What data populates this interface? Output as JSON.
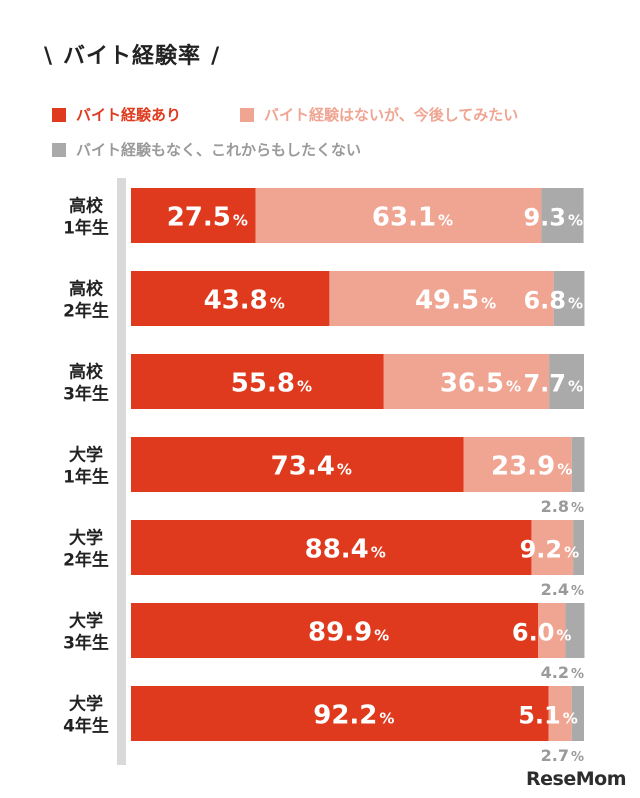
{
  "title": "バイト経験率",
  "title_slash_left": "\\",
  "title_slash_right": "/",
  "legend": [
    {
      "label": "バイト経験あり",
      "color": "#e03a1e",
      "text_color": "#e03a1e"
    },
    {
      "label": "バイト経験はないが、今後してみたい",
      "color": "#f0a593",
      "text_color": "#f0a593"
    },
    {
      "label": "バイト経験もなく、これからもしたくない",
      "color": "#aaaaaa",
      "text_color": "#9a9a9a"
    }
  ],
  "logo": "ReseMom",
  "chart_data": {
    "type": "bar",
    "stacked": true,
    "orientation": "horizontal",
    "unit": "%",
    "categories": [
      [
        "高校",
        "1年生"
      ],
      [
        "高校",
        "2年生"
      ],
      [
        "高校",
        "3年生"
      ],
      [
        "大学",
        "1年生"
      ],
      [
        "大学",
        "2年生"
      ],
      [
        "大学",
        "3年生"
      ],
      [
        "大学",
        "4年生"
      ]
    ],
    "series": [
      {
        "name": "バイト経験あり",
        "color": "#e03a1e",
        "values": [
          27.5,
          43.8,
          55.8,
          73.4,
          88.4,
          89.9,
          92.2
        ]
      },
      {
        "name": "バイト経験はないが、今後してみたい",
        "color": "#f0a593",
        "values": [
          63.1,
          49.5,
          36.5,
          23.9,
          9.2,
          6.0,
          5.1
        ]
      },
      {
        "name": "バイト経験もなく、これからもしたくない",
        "color": "#aaaaaa",
        "values": [
          9.3,
          6.8,
          7.7,
          2.8,
          2.4,
          4.2,
          2.7
        ]
      }
    ],
    "value_labels": [
      [
        "27.5",
        "63.1",
        "9.3"
      ],
      [
        "43.8",
        "49.5",
        "6.8"
      ],
      [
        "55.8",
        "36.5",
        "7.7"
      ],
      [
        "73.4",
        "23.9",
        "2.8"
      ],
      [
        "88.4",
        "9.2",
        "2.4"
      ],
      [
        "89.9",
        "6.0",
        "4.2"
      ],
      [
        "92.2",
        "5.1",
        "2.7"
      ]
    ],
    "xlim": [
      0,
      100
    ]
  }
}
